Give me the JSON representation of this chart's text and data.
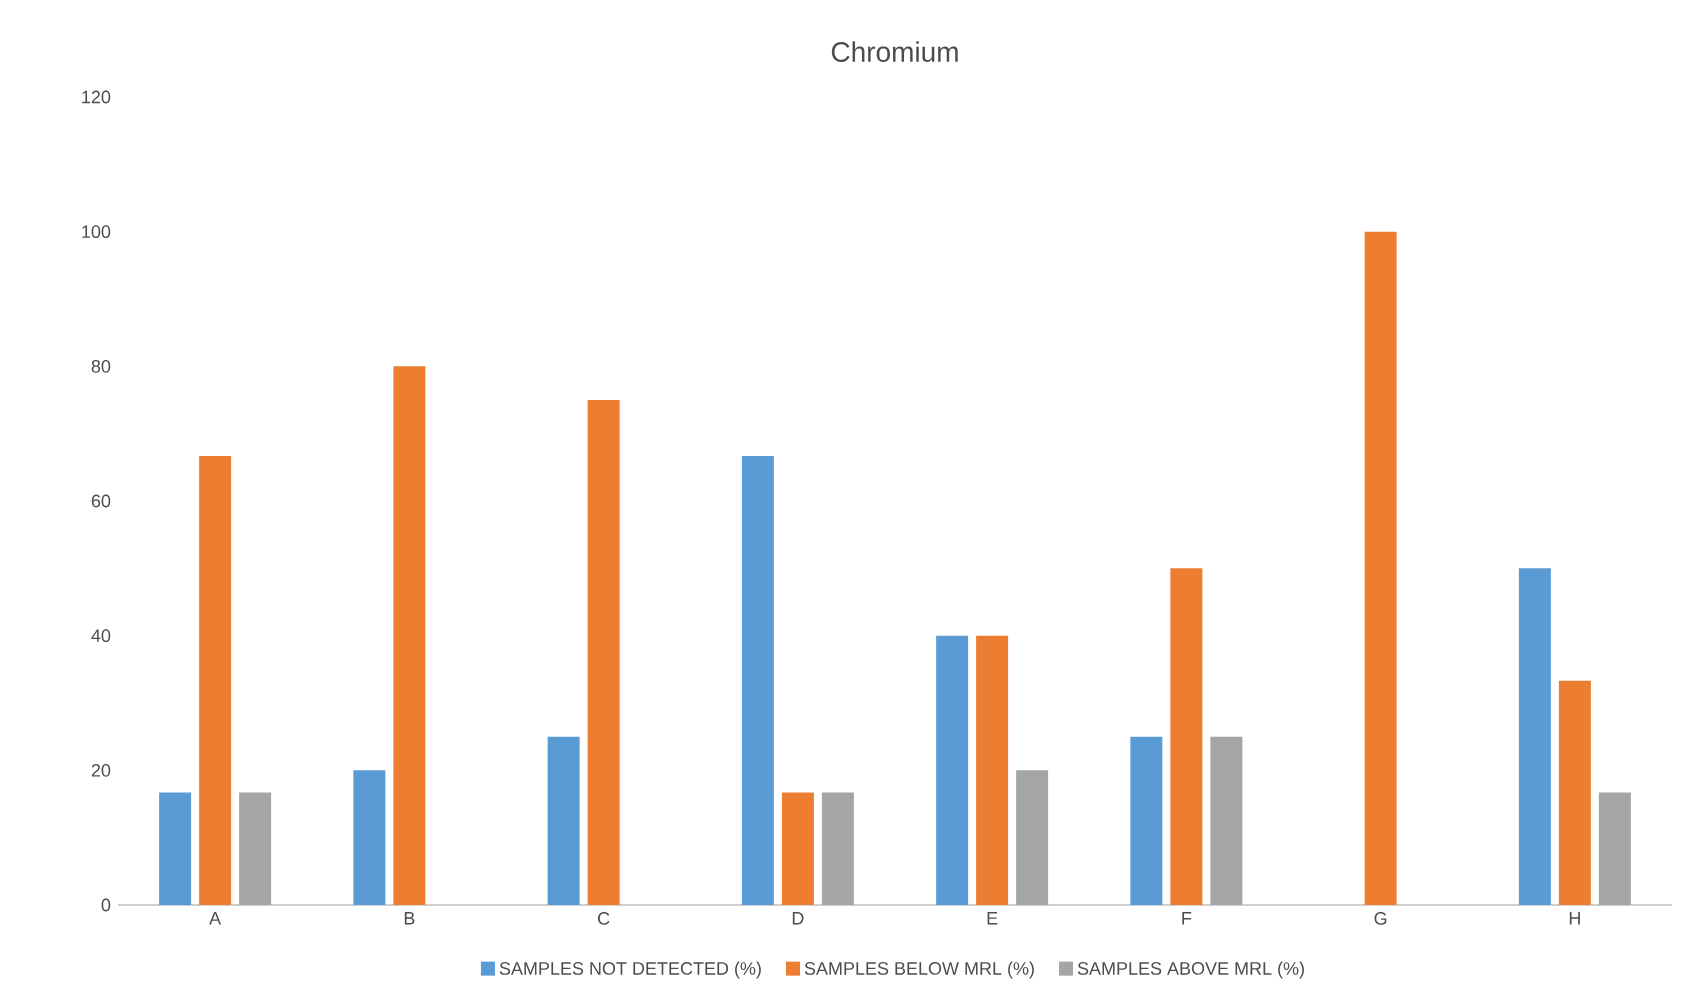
{
  "chart_data": {
    "type": "bar",
    "title": "Chromium",
    "categories": [
      "A",
      "B",
      "C",
      "D",
      "E",
      "F",
      "G",
      "H"
    ],
    "series": [
      {
        "name": "SAMPLES NOT DETECTED (%)",
        "color": "#5b9bd5",
        "values": [
          16.7,
          20,
          25,
          66.7,
          40,
          25,
          0,
          50
        ]
      },
      {
        "name": "SAMPLES BELOW MRL (%)",
        "color": "#ed7d31",
        "values": [
          66.7,
          80,
          75,
          16.7,
          40,
          50,
          100,
          33.3
        ]
      },
      {
        "name": "SAMPLES ABOVE MRL (%)",
        "color": "#a5a5a5",
        "values": [
          16.7,
          0,
          0,
          16.7,
          20,
          25,
          0,
          16.7
        ]
      }
    ],
    "ylim": [
      0,
      120
    ],
    "yticks": [
      0,
      20,
      40,
      60,
      80,
      100,
      120
    ],
    "legend": "bottom"
  }
}
